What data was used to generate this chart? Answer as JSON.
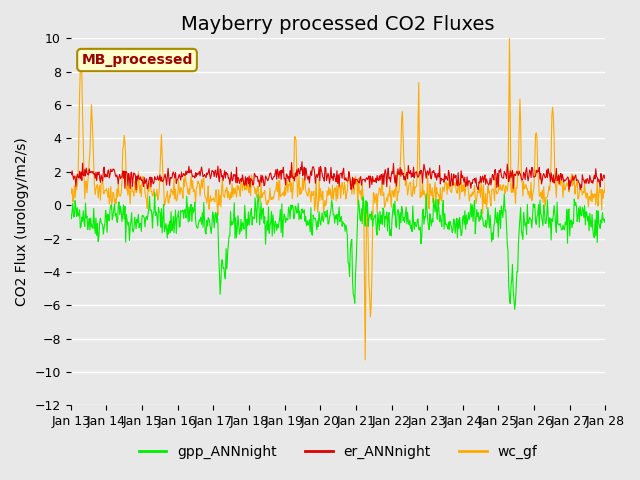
{
  "title": "Mayberry processed CO2 Fluxes",
  "ylabel": "CO2 Flux (urology/m2/s)",
  "ylim": [
    -12,
    10
  ],
  "yticks": [
    -12,
    -10,
    -8,
    -6,
    -4,
    -2,
    0,
    2,
    4,
    6,
    8,
    10
  ],
  "xlim_start": 0,
  "xlim_end": 15,
  "x_tick_labels": [
    "Jan 13",
    "Jan 14",
    "Jan 15",
    "Jan 16",
    "Jan 17",
    "Jan 18",
    "Jan 19",
    "Jan 20",
    "Jan 21",
    "Jan 22",
    "Jan 23",
    "Jan 24",
    "Jan 25",
    "Jan 26",
    "Jan 27",
    "Jan 28"
  ],
  "legend_label": "MB_processed",
  "series_labels": [
    "gpp_ANNnight",
    "er_ANNnight",
    "wc_gf"
  ],
  "series_colors": [
    "#00ee00",
    "#dd0000",
    "#ffaa00"
  ],
  "background_color": "#e8e8e8",
  "axes_bg_color": "#e8e8e8",
  "grid_color": "#ffffff",
  "title_fontsize": 14,
  "label_fontsize": 10,
  "tick_fontsize": 9,
  "legend_box_color": "#ffffcc",
  "legend_box_edge": "#aa8800",
  "legend_text_color": "#990000",
  "n_points": 720,
  "seed": 42
}
